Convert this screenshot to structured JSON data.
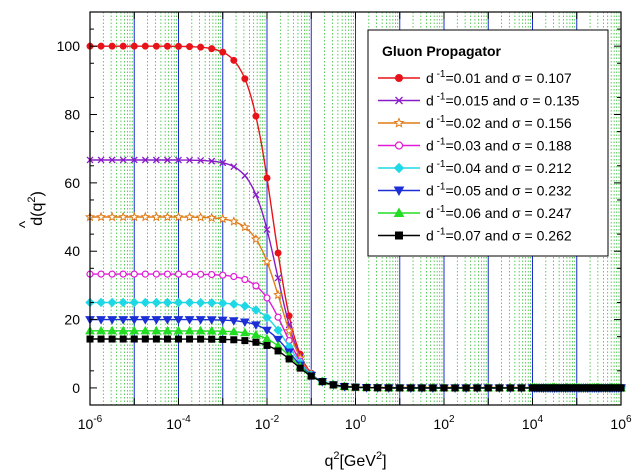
{
  "chart_data": {
    "type": "line",
    "title": "",
    "xlabel": "q",
    "xlabel_sup": "2",
    "xlabel_rest": "[GeV",
    "xlabel_sup2": "2",
    "xlabel_end": "]",
    "ylabel": "d(q",
    "ylabel_sup": "2",
    "ylabel_end": ")",
    "ylabel_hat": "^",
    "x_scale": "log",
    "xlim": [
      1e-06,
      1000000.0
    ],
    "ylim": [
      -5,
      110
    ],
    "x_tick_bases": [
      "10",
      "10",
      "10",
      "10",
      "10",
      "10",
      "10"
    ],
    "x_tick_exps": [
      "-6",
      "-4",
      "-2",
      "0",
      "2",
      "4",
      "6"
    ],
    "x_tick_values": [
      1e-06,
      0.0001,
      0.01,
      1,
      100,
      10000,
      1000000
    ],
    "y_ticks": [
      0,
      20,
      40,
      60,
      80,
      100
    ],
    "grid": true,
    "legend_position": "top-right",
    "legend_title": "Gluon Propagator",
    "series": [
      {
        "name": "d⁻¹=0.01  and σ = 0.107",
        "pre": "d",
        "sup": "-1",
        "post": "=0.01  and σ = 0.107",
        "color": "#e8131a",
        "marker": "circle",
        "plateau": 100,
        "q0": 0.0135,
        "steep": 1.55
      },
      {
        "name": "d⁻¹=0.015 and σ = 0.135",
        "pre": "d",
        "sup": "-1",
        "post": "=0.015 and σ = 0.135",
        "color": "#8a1cc8",
        "marker": "x",
        "plateau": 66.7,
        "q0": 0.017,
        "steep": 1.55
      },
      {
        "name": "d⁻¹=0.02  and σ = 0.156",
        "pre": "d",
        "sup": "-1",
        "post": "=0.02  and σ = 0.156",
        "color": "#e07b16",
        "marker": "star",
        "plateau": 50,
        "q0": 0.02,
        "steep": 1.5
      },
      {
        "name": "d⁻¹=0.03  and σ = 0.188",
        "pre": "d",
        "sup": "-1",
        "post": "=0.03  and σ = 0.188",
        "color": "#e01bd8",
        "marker": "open-circle",
        "plateau": 33.3,
        "q0": 0.025,
        "steep": 1.45
      },
      {
        "name": "d⁻¹=0.04  and σ = 0.212",
        "pre": "d",
        "sup": "-1",
        "post": "=0.04  and σ = 0.212",
        "color": "#1fd8e6",
        "marker": "diamond",
        "plateau": 25,
        "q0": 0.03,
        "steep": 1.4
      },
      {
        "name": "d⁻¹=0.05  and σ = 0.232",
        "pre": "d",
        "sup": "-1",
        "post": "=0.05  and σ = 0.232",
        "color": "#1c2fd6",
        "marker": "triangle-down",
        "plateau": 20,
        "q0": 0.034,
        "steep": 1.38
      },
      {
        "name": "d⁻¹=0.06  and σ = 0.247",
        "pre": "d",
        "sup": "-1",
        "post": "=0.06  and σ = 0.247",
        "color": "#22dd22",
        "marker": "triangle-up",
        "plateau": 16.7,
        "q0": 0.038,
        "steep": 1.35
      },
      {
        "name": "d⁻¹=0.07  and σ = 0.262",
        "pre": "d",
        "sup": "-1",
        "post": "=0.07  and σ = 0.262",
        "color": "#000000",
        "marker": "square",
        "plateau": 14.3,
        "q0": 0.042,
        "steep": 1.32
      }
    ]
  }
}
